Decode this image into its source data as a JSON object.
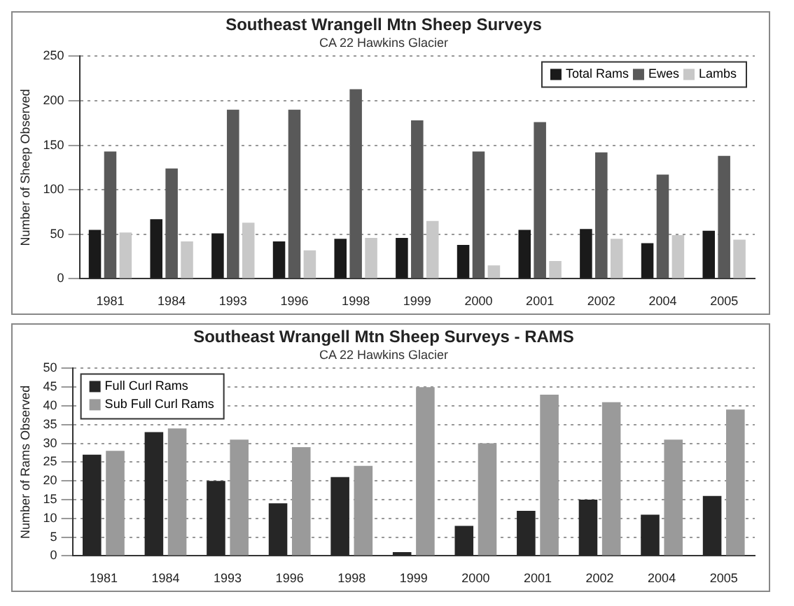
{
  "chart_data": [
    {
      "type": "bar",
      "title": "Southeast Wrangell Mtn Sheep Surveys",
      "subtitle": "CA 22 Hawkins Glacier",
      "ylabel": "Number of Sheep Observed",
      "categories": [
        "1981",
        "1984",
        "1993",
        "1996",
        "1998",
        "1999",
        "2000",
        "2001",
        "2002",
        "2004",
        "2005"
      ],
      "series": [
        {
          "name": "Total Rams",
          "color": "#1a1a1a",
          "values": [
            55,
            67,
            51,
            42,
            45,
            46,
            38,
            55,
            56,
            40,
            54
          ]
        },
        {
          "name": "Ewes",
          "color": "#595959",
          "values": [
            143,
            124,
            190,
            190,
            213,
            178,
            143,
            176,
            142,
            117,
            138
          ]
        },
        {
          "name": "Lambs",
          "color": "#c8c8c8",
          "values": [
            52,
            42,
            63,
            32,
            46,
            65,
            15,
            20,
            45,
            49,
            44
          ]
        }
      ],
      "ylim": [
        0,
        250
      ],
      "yticks": [
        0,
        50,
        100,
        150,
        200,
        250
      ],
      "grid": "y",
      "legend": "top right"
    },
    {
      "type": "bar",
      "title": "Southeast Wrangell Mtn Sheep Surveys - RAMS",
      "subtitle": "CA 22 Hawkins Glacier",
      "ylabel": "Number of Rams Observed",
      "categories": [
        "1981",
        "1984",
        "1993",
        "1996",
        "1998",
        "1999",
        "2000",
        "2001",
        "2002",
        "2004",
        "2005"
      ],
      "series": [
        {
          "name": "Full Curl Rams",
          "color": "#262626",
          "values": [
            27,
            33,
            20,
            14,
            21,
            1,
            8,
            12,
            15,
            11,
            16
          ]
        },
        {
          "name": "Sub Full Curl Rams",
          "color": "#9a9a9a",
          "values": [
            28,
            34,
            31,
            29,
            24,
            45,
            30,
            43,
            41,
            31,
            39
          ]
        }
      ],
      "ylim": [
        0,
        50
      ],
      "yticks": [
        0,
        5,
        10,
        15,
        20,
        25,
        30,
        35,
        40,
        45,
        50
      ],
      "grid": "y",
      "legend": "top left"
    }
  ]
}
